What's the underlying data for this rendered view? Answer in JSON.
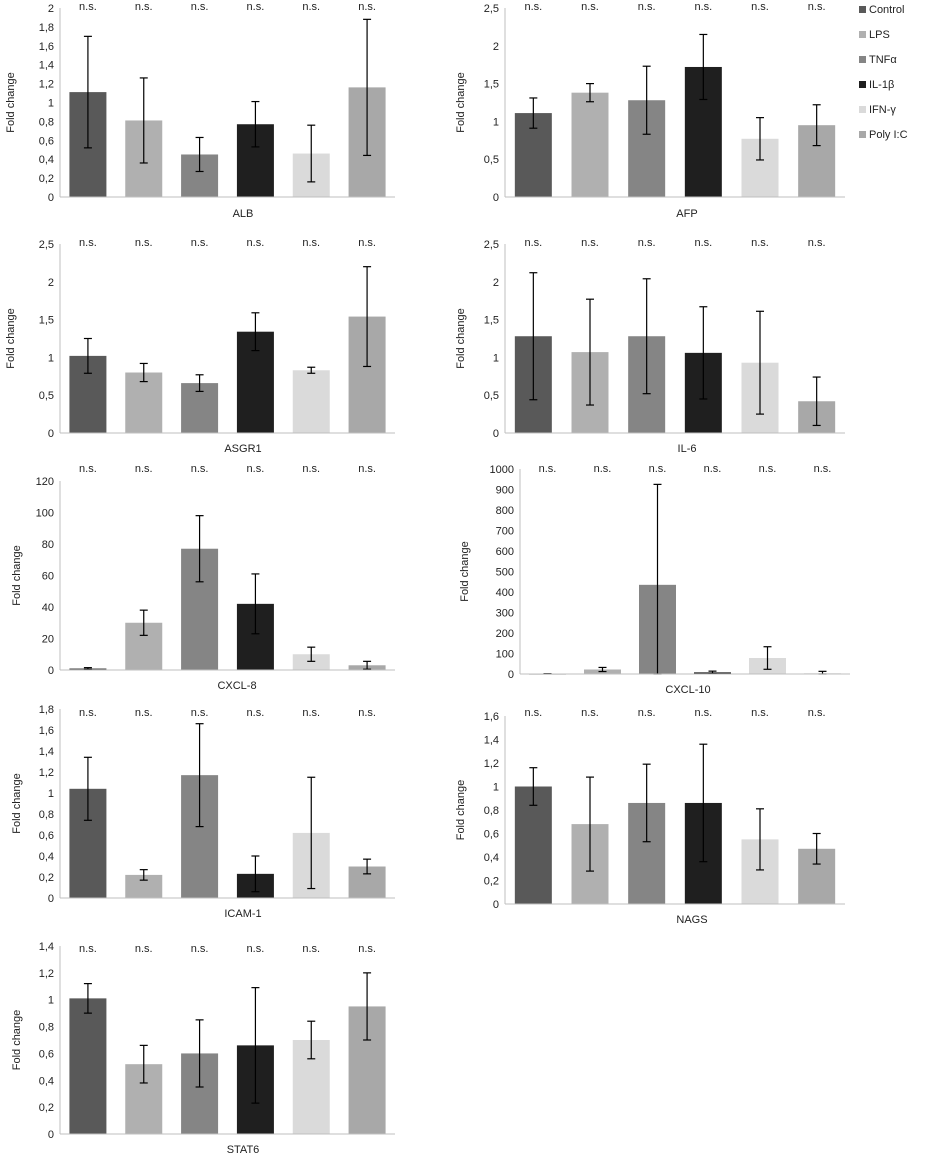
{
  "figure": {
    "legend": [
      {
        "label": "Control",
        "color": "#595959"
      },
      {
        "label": "LPS",
        "color": "#b0b0b0"
      },
      {
        "label": "TNFα",
        "color": "#858585"
      },
      {
        "label": "IL-1β",
        "color": "#1f1f1f"
      },
      {
        "label": "IFN-γ",
        "color": "#dadada"
      },
      {
        "label": "Poly I:C",
        "color": "#a8a8a8"
      }
    ]
  },
  "chart_data": [
    {
      "type": "bar",
      "title": "ALB",
      "xlabel": "ALB",
      "ylabel": "Fold change",
      "categories": [
        "Control",
        "LPS",
        "TNFα",
        "IL-1β",
        "IFN-γ",
        "Poly I:C"
      ],
      "values": [
        1.11,
        0.81,
        0.45,
        0.77,
        0.46,
        1.16
      ],
      "errors": [
        0.59,
        0.45,
        0.18,
        0.24,
        0.3,
        0.72
      ],
      "ylim": [
        0,
        2
      ],
      "ticks": [
        "0",
        "0,2",
        "0,4",
        "0,6",
        "0,8",
        "1",
        "1,2",
        "1,4",
        "1,6",
        "1,8",
        "2"
      ],
      "annotations": [
        "n.s.",
        "n.s.",
        "n.s.",
        "n.s.",
        "n.s.",
        "n.s."
      ]
    },
    {
      "type": "bar",
      "title": "AFP",
      "xlabel": "AFP",
      "ylabel": "Fold change",
      "categories": [
        "Control",
        "LPS",
        "TNFα",
        "IL-1β",
        "IFN-γ",
        "Poly I:C"
      ],
      "values": [
        1.11,
        1.38,
        1.28,
        1.72,
        0.77,
        0.95
      ],
      "errors": [
        0.2,
        0.12,
        0.45,
        0.43,
        0.28,
        0.27
      ],
      "ylim": [
        0,
        2.5
      ],
      "ticks": [
        "0",
        "0,5",
        "1",
        "1,5",
        "2",
        "2,5"
      ],
      "annotations": [
        "n.s.",
        "n.s.",
        "n.s.",
        "n.s.",
        "n.s.",
        "n.s."
      ]
    },
    {
      "type": "bar",
      "title": "ASGR1",
      "xlabel": "ASGR1",
      "ylabel": "Fold change",
      "categories": [
        "Control",
        "LPS",
        "TNFα",
        "IL-1β",
        "IFN-γ",
        "Poly I:C"
      ],
      "values": [
        1.02,
        0.8,
        0.66,
        1.34,
        0.83,
        1.54
      ],
      "errors": [
        0.23,
        0.12,
        0.11,
        0.25,
        0.04,
        0.66
      ],
      "ylim": [
        0,
        2.5
      ],
      "ticks": [
        "0",
        "0,5",
        "1",
        "1,5",
        "2",
        "2,5"
      ],
      "annotations": [
        "n.s.",
        "n.s.",
        "n.s.",
        "n.s.",
        "n.s.",
        "n.s."
      ]
    },
    {
      "type": "bar",
      "title": "IL-6",
      "xlabel": "IL-6",
      "ylabel": "Fold change",
      "categories": [
        "Control",
        "LPS",
        "TNFα",
        "IL-1β",
        "IFN-γ",
        "Poly I:C"
      ],
      "values": [
        1.28,
        1.07,
        1.28,
        1.06,
        0.93,
        0.42
      ],
      "errors": [
        0.84,
        0.7,
        0.76,
        0.61,
        0.68,
        0.32
      ],
      "ylim": [
        0,
        2.5
      ],
      "ticks": [
        "0",
        "0,5",
        "1",
        "1,5",
        "2",
        "2,5"
      ],
      "annotations": [
        "n.s.",
        "n.s.",
        "n.s.",
        "n.s.",
        "n.s.",
        "n.s."
      ]
    },
    {
      "type": "bar",
      "title": "CXCL-8",
      "xlabel": "CXCL-8",
      "ylabel": "Fold change",
      "categories": [
        "Control",
        "LPS",
        "TNFα",
        "IL-1β",
        "IFN-γ",
        "Poly I:C"
      ],
      "values": [
        1,
        30,
        77,
        42,
        10,
        3
      ],
      "errors": [
        0.5,
        8,
        21,
        19,
        4.5,
        2.5
      ],
      "ylim": [
        0,
        120
      ],
      "ticks": [
        "0",
        "20",
        "40",
        "60",
        "80",
        "100",
        "120"
      ],
      "annotations": [
        "n.s.",
        "n.s.",
        "n.s.",
        "n.s.",
        "n.s.",
        "n.s."
      ]
    },
    {
      "type": "bar",
      "title": "CXCL-10",
      "xlabel": "CXCL-10",
      "ylabel": "Fold change",
      "categories": [
        "Control",
        "LPS",
        "TNFα",
        "IL-1β",
        "IFN-γ",
        "Poly I:C"
      ],
      "values": [
        1,
        22,
        435,
        8,
        78,
        3
      ],
      "errors": [
        0.5,
        10,
        490,
        6,
        55,
        10
      ],
      "ylim": [
        0,
        1000
      ],
      "ticks": [
        "0",
        "100",
        "200",
        "300",
        "400",
        "500",
        "600",
        "700",
        "800",
        "900",
        "1000"
      ],
      "annotations": [
        "n.s.",
        "n.s.",
        "n.s.",
        "n.s.",
        "n.s.",
        "n.s."
      ]
    },
    {
      "type": "bar",
      "title": "ICAM-1",
      "xlabel": "ICAM-1",
      "ylabel": "Fold change",
      "categories": [
        "Control",
        "LPS",
        "TNFα",
        "IL-1β",
        "IFN-γ",
        "Poly I:C"
      ],
      "values": [
        1.04,
        0.22,
        1.17,
        0.23,
        0.62,
        0.3
      ],
      "errors": [
        0.3,
        0.05,
        0.49,
        0.17,
        0.53,
        0.07
      ],
      "ylim": [
        0,
        1.8
      ],
      "ticks": [
        "0",
        "0,2",
        "0,4",
        "0,6",
        "0,8",
        "1",
        "1,2",
        "1,4",
        "1,6",
        "1,8"
      ],
      "annotations": [
        "n.s.",
        "n.s.",
        "n.s.",
        "n.s.",
        "n.s.",
        "n.s."
      ]
    },
    {
      "type": "bar",
      "title": "NAGS",
      "xlabel": "NAGS",
      "ylabel": "Fold change",
      "categories": [
        "Control",
        "LPS",
        "TNFα",
        "IL-1β",
        "IFN-γ",
        "Poly I:C"
      ],
      "values": [
        1.0,
        0.68,
        0.86,
        0.86,
        0.55,
        0.47
      ],
      "errors": [
        0.16,
        0.4,
        0.33,
        0.5,
        0.26,
        0.13
      ],
      "ylim": [
        0,
        1.6
      ],
      "ticks": [
        "0",
        "0,2",
        "0,4",
        "0,6",
        "0,8",
        "1",
        "1,2",
        "1,4",
        "1,6"
      ],
      "annotations": [
        "n.s.",
        "n.s.",
        "n.s.",
        "n.s.",
        "n.s.",
        "n.s."
      ]
    },
    {
      "type": "bar",
      "title": "STAT6",
      "xlabel": "STAT6",
      "ylabel": "Fold change",
      "categories": [
        "Control",
        "LPS",
        "TNFα",
        "IL-1β",
        "IFN-γ",
        "Poly I:C"
      ],
      "values": [
        1.01,
        0.52,
        0.6,
        0.66,
        0.7,
        0.95
      ],
      "errors": [
        0.11,
        0.14,
        0.25,
        0.43,
        0.14,
        0.25
      ],
      "ylim": [
        0,
        1.4
      ],
      "ticks": [
        "0",
        "0,2",
        "0,4",
        "0,6",
        "0,8",
        "1",
        "1,2",
        "1,4"
      ],
      "annotations": [
        "n.s.",
        "n.s.",
        "n.s.",
        "n.s.",
        "n.s.",
        "n.s."
      ]
    }
  ]
}
